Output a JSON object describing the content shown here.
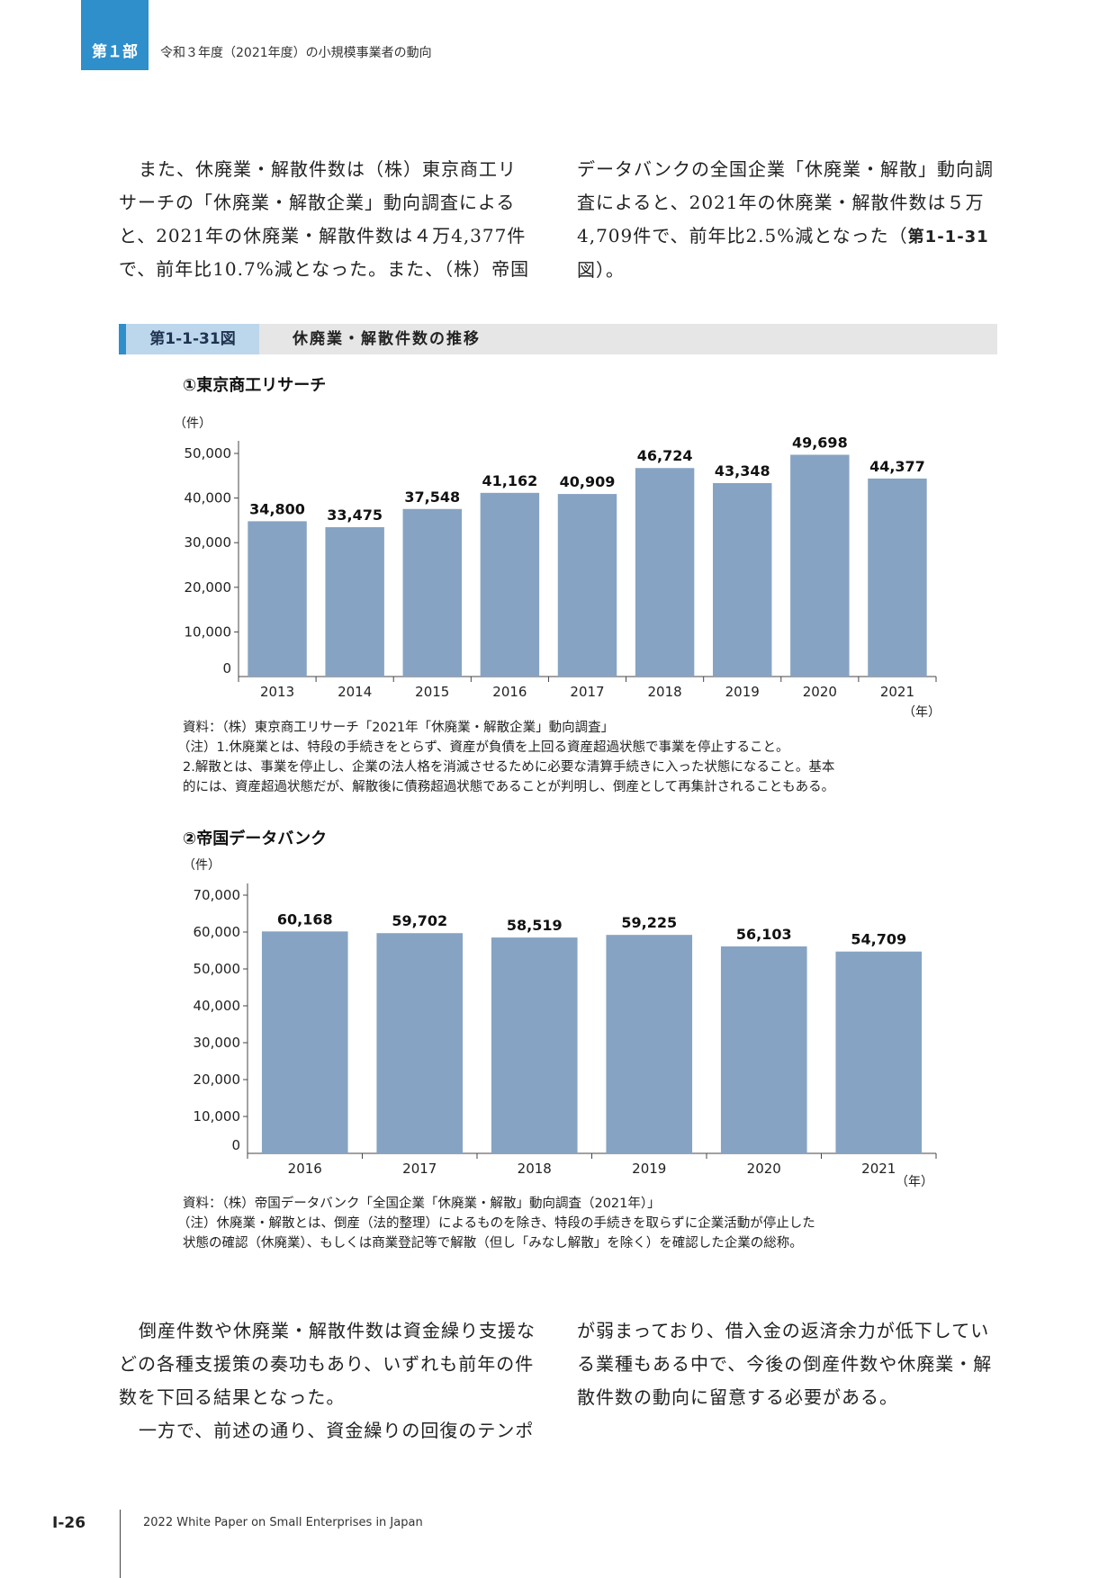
{
  "header": {
    "part": "第１部",
    "title": "令和３年度（2021年度）の小規模事業者の動向"
  },
  "intro": {
    "left": [
      "また、休廃業・解散件数は（株）東京商工リ",
      "サーチの「休廃業・解散企業」動向調査による",
      "と、2021年の休廃業・解散件数は４万4,377件",
      "で、前年比10.7%減となった。また、（株）帝国"
    ],
    "right_lines": [
      "データバンクの全国企業「休廃業・解散」動向調",
      "査によると、2021年の休廃業・解散件数は５万",
      "4,709件で、前年比2.5%減となった（"
    ],
    "right_fig_ref": "第1-1-31",
    "right_last": "図）。"
  },
  "figure": {
    "number": "第1-1-31図",
    "title": "休廃業・解散件数の推移"
  },
  "charts": {
    "tsr": {
      "heading": "①東京商工リサーチ",
      "unit": "（件）",
      "year_unit": "（年）",
      "source": "資料：（株）東京商工リサーチ「2021年「休廃業・解散企業」動向調査」",
      "notes": [
        "（注）1.休廃業とは、特段の手続きをとらず、資産が負債を上回る資産超過状態で事業を停止すること。",
        "2.解散とは、事業を停止し、企業の法人格を消滅させるために必要な清算手続きに入った状態になること。基本",
        "的には、資産超過状態だが、解散後に債務超過状態であることが判明し、倒産として再集計されることもある。"
      ]
    },
    "tdb": {
      "heading": "②帝国データバンク",
      "unit": "（件）",
      "year_unit": "（年）",
      "source": "資料：（株）帝国データバンク「全国企業「休廃業・解散」動向調査（2021年）」",
      "notes": [
        "（注）休廃業・解散とは、倒産（法的整理）によるものを除き、特段の手続きを取らずに企業活動が停止した",
        "状態の確認（休廃業）、もしくは商業登記等で解散（但し「みなし解散」を除く）を確認した企業の総称。"
      ]
    }
  },
  "chart_data": [
    {
      "type": "bar",
      "title": "①東京商工リサーチ",
      "ylabel": "（件）",
      "xlabel": "（年）",
      "categories": [
        "2013",
        "2014",
        "2015",
        "2016",
        "2017",
        "2018",
        "2019",
        "2020",
        "2021"
      ],
      "values": [
        34800,
        33475,
        37548,
        41162,
        40909,
        46724,
        43348,
        49698,
        44377
      ],
      "value_labels": [
        "34,800",
        "33,475",
        "37,548",
        "41,162",
        "40,909",
        "46,724",
        "43,348",
        "49,698",
        "44,377"
      ],
      "yticks": [
        "0",
        "10,000",
        "20,000",
        "30,000",
        "40,000",
        "50,000"
      ],
      "ylim": [
        0,
        50000
      ],
      "bar_color": "#86a3c3",
      "grid": false
    },
    {
      "type": "bar",
      "title": "②帝国データバンク",
      "ylabel": "（件）",
      "xlabel": "（年）",
      "categories": [
        "2016",
        "2017",
        "2018",
        "2019",
        "2020",
        "2021"
      ],
      "values": [
        60168,
        59702,
        58519,
        59225,
        56103,
        54709
      ],
      "value_labels": [
        "60,168",
        "59,702",
        "58,519",
        "59,225",
        "56,103",
        "54,709"
      ],
      "yticks": [
        "0",
        "10,000",
        "20,000",
        "30,000",
        "40,000",
        "50,000",
        "60,000",
        "70,000"
      ],
      "ylim": [
        0,
        70000
      ],
      "bar_color": "#86a3c3",
      "grid": false
    }
  ],
  "conclusion": {
    "left": [
      "倒産件数や休廃業・解散件数は資金繰り支援な",
      "どの各種支援策の奏功もあり、いずれも前年の件",
      "数を下回る結果となった。",
      "一方で、前述の通り、資金繰りの回復のテンポ"
    ],
    "right": [
      "が弱まっており、借入金の返済余力が低下してい",
      "る業種もある中で、今後の倒産件数や休廃業・解",
      "散件数の動向に留意する必要がある。"
    ]
  },
  "footer": {
    "page": "Ⅰ-26",
    "title": "2022 White Paper on Small Enterprises in Japan"
  }
}
